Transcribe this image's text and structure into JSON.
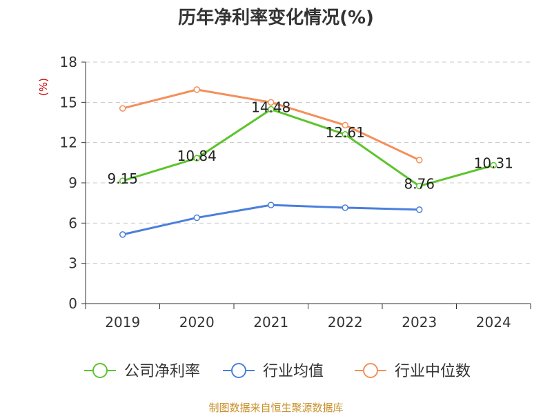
{
  "chart_data": {
    "type": "line",
    "title": "历年净利率变化情况(%)",
    "ylabel": "(%)",
    "xlabel": "",
    "categories": [
      "2019",
      "2020",
      "2021",
      "2022",
      "2023",
      "2024"
    ],
    "ylim": [
      0,
      18
    ],
    "yticks": [
      0,
      3,
      6,
      9,
      12,
      15,
      18
    ],
    "grid": true,
    "legend_position": "bottom",
    "series": [
      {
        "name": "公司净利率",
        "color": "#5cc42c",
        "values": [
          9.15,
          10.84,
          14.48,
          12.61,
          8.76,
          10.31
        ],
        "labels": [
          "9.15",
          "10.84",
          "14.48",
          "12.61",
          "8.76",
          "10.31"
        ]
      },
      {
        "name": "行业均值",
        "color": "#4a7fdc",
        "values": [
          5.15,
          6.4,
          7.35,
          7.15,
          7.0,
          null
        ]
      },
      {
        "name": "行业中位数",
        "color": "#f48f5a",
        "values": [
          14.55,
          15.95,
          15.0,
          13.3,
          10.7,
          null
        ]
      }
    ]
  },
  "footer": {
    "source": "制图数据来自恒生聚源数据库"
  }
}
